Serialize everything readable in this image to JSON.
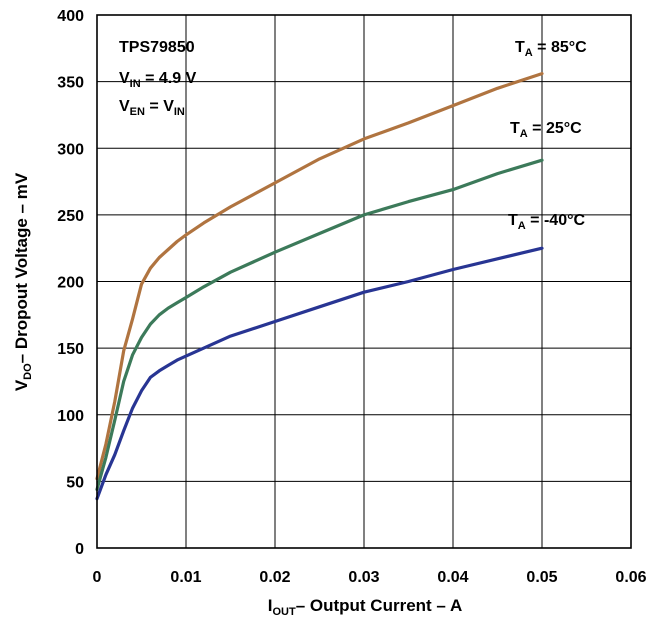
{
  "chart_data": {
    "type": "line",
    "x_axis": {
      "label_main": "I",
      "label_sub": "OUT",
      "label_rest": "– Output Current – A",
      "min": 0,
      "max": 0.06,
      "ticks": [
        0,
        0.01,
        0.02,
        0.03,
        0.04,
        0.05,
        0.06
      ],
      "tick_labels": [
        "0",
        "0.01",
        "0.02",
        "0.03",
        "0.04",
        "0.05",
        "0.06"
      ]
    },
    "y_axis": {
      "label_main": "V",
      "label_sub": "DO",
      "label_rest": "– Dropout Voltage – mV",
      "min": 0,
      "max": 400,
      "ticks": [
        0,
        50,
        100,
        150,
        200,
        250,
        300,
        350,
        400
      ],
      "tick_labels": [
        "0",
        "50",
        "100",
        "150",
        "200",
        "250",
        "300",
        "350",
        "400"
      ]
    },
    "grid": true,
    "annotation": {
      "device": "TPS79850",
      "vin_main": "V",
      "vin_sub": "IN",
      "vin_rest": " = 4.9 V",
      "ven_main": "V",
      "ven_sub": "EN",
      "ven_eq": " = V",
      "ven_sub2": "IN"
    },
    "series": [
      {
        "name": "T_A = 85°C",
        "label_main": "T",
        "label_sub": "A",
        "label_rest": " = 85°C",
        "color": "#b07440",
        "x": [
          0,
          0.001,
          0.002,
          0.003,
          0.004,
          0.005,
          0.006,
          0.007,
          0.008,
          0.009,
          0.01,
          0.012,
          0.015,
          0.02,
          0.025,
          0.03,
          0.035,
          0.04,
          0.045,
          0.05
        ],
        "y": [
          52,
          78,
          110,
          148,
          172,
          198,
          210,
          218,
          224,
          230,
          235,
          244,
          256,
          274,
          292,
          307,
          319,
          332,
          345,
          356
        ]
      },
      {
        "name": "T_A = 25°C",
        "label_main": "T",
        "label_sub": "A",
        "label_rest": " = 25°C",
        "color": "#3c7a5a",
        "x": [
          0,
          0.001,
          0.002,
          0.003,
          0.004,
          0.005,
          0.006,
          0.007,
          0.008,
          0.009,
          0.01,
          0.012,
          0.015,
          0.02,
          0.025,
          0.03,
          0.035,
          0.04,
          0.045,
          0.05
        ],
        "y": [
          44,
          68,
          96,
          125,
          145,
          158,
          168,
          175,
          180,
          184,
          188,
          196,
          207,
          222,
          236,
          250,
          260,
          269,
          281,
          291
        ]
      },
      {
        "name": "T_A = -40°C",
        "label_main": "T",
        "label_sub": "A",
        "label_rest": " = -40°C",
        "color": "#283593",
        "x": [
          0,
          0.001,
          0.002,
          0.003,
          0.004,
          0.005,
          0.006,
          0.007,
          0.008,
          0.009,
          0.01,
          0.012,
          0.015,
          0.02,
          0.025,
          0.03,
          0.035,
          0.04,
          0.045,
          0.05
        ],
        "y": [
          37,
          55,
          70,
          88,
          105,
          118,
          128,
          133,
          137,
          141,
          144,
          150,
          159,
          170,
          181,
          192,
          200,
          209,
          217,
          225
        ]
      }
    ]
  }
}
